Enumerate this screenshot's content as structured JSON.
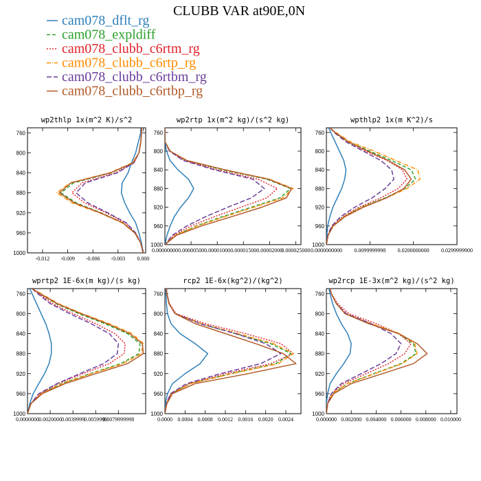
{
  "figure_title": "CLUBB VAR at90E,0N",
  "series_styles": [
    {
      "name": "cam078_dflt_rg",
      "color": "#2e7fb8",
      "dash": ""
    },
    {
      "name": "cam078_expldiff",
      "color": "#2ca02c",
      "dash": "5,3"
    },
    {
      "name": "cam078_clubb_c6rtm_rg",
      "color": "#e2232a",
      "dash": "2,2"
    },
    {
      "name": "cam078_clubb_c6rtp_rg",
      "color": "#ff8c00",
      "dash": "6,2,1,2"
    },
    {
      "name": "cam078_clubb_c6rtbm_rg",
      "color": "#6a3d9a",
      "dash": "7,3"
    },
    {
      "name": "cam078_clubb_c6rtbp_rg",
      "color": "#b15a28",
      "dash": ""
    }
  ],
  "chart_data": [
    {
      "type": "line",
      "title": "wp2thlp   1x(m^2 K)/s^2",
      "ylim": [
        1000,
        750
      ],
      "yticks": [
        760,
        800,
        840,
        880,
        920,
        960,
        1000
      ],
      "xlim": [
        -0.0138,
        0.0003
      ],
      "xticks": [
        -0.012,
        -0.009,
        -0.006,
        -0.003,
        0.0
      ],
      "xtick_labels": [
        "-0.012",
        "-0.009",
        "-0.006",
        "-0.003",
        "0.000"
      ],
      "y": [
        750,
        760,
        780,
        800,
        820,
        840,
        860,
        880,
        900,
        920,
        940,
        960,
        980,
        1000
      ],
      "series": [
        {
          "name": "cam078_dflt_rg",
          "values": [
            -0.0003,
            -0.0003,
            -0.0006,
            -0.0009,
            -0.0014,
            -0.0018,
            -0.0025,
            -0.0026,
            -0.0022,
            -0.0016,
            -0.0009,
            -0.0005,
            -0.0002,
            0.0
          ]
        },
        {
          "name": "cam078_expldiff",
          "values": [
            -0.0002,
            -0.0002,
            -0.0003,
            -0.0005,
            -0.0012,
            -0.0038,
            -0.0083,
            -0.0098,
            -0.008,
            -0.005,
            -0.0024,
            -0.001,
            -0.0003,
            0.0
          ]
        },
        {
          "name": "cam078_clubb_c6rtm_rg",
          "values": [
            -0.0002,
            -0.0002,
            -0.0003,
            -0.0005,
            -0.0011,
            -0.0033,
            -0.0073,
            -0.0085,
            -0.007,
            -0.0044,
            -0.0021,
            -0.0009,
            -0.0003,
            0.0
          ]
        },
        {
          "name": "cam078_clubb_c6rtp_rg",
          "values": [
            -0.0002,
            -0.0002,
            -0.0003,
            -0.0005,
            -0.0013,
            -0.004,
            -0.0087,
            -0.0103,
            -0.0085,
            -0.0052,
            -0.0025,
            -0.001,
            -0.0003,
            0.0
          ]
        },
        {
          "name": "cam078_clubb_c6rtbm_rg",
          "values": [
            -0.0002,
            -0.0002,
            -0.0003,
            -0.0005,
            -0.0011,
            -0.0031,
            -0.0069,
            -0.008,
            -0.0066,
            -0.0042,
            -0.002,
            -0.0009,
            -0.0003,
            0.0
          ]
        },
        {
          "name": "cam078_clubb_c6rtbp_rg",
          "values": [
            -0.0002,
            -0.0002,
            -0.0003,
            -0.0005,
            -0.0012,
            -0.0039,
            -0.0086,
            -0.01,
            -0.0082,
            -0.0051,
            -0.0024,
            -0.001,
            -0.0003,
            0.0
          ]
        }
      ]
    },
    {
      "type": "line",
      "title": "wp2rtp   1x(m^2 kg)/(s^2 kg)",
      "ylim": [
        1000,
        750
      ],
      "yticks": [
        760,
        800,
        840,
        880,
        920,
        960,
        1000
      ],
      "xlim": [
        0.0,
        2.6e-05
      ],
      "xticks": [
        0.0,
        5e-06,
        1e-05,
        1.5e-05,
        2e-05,
        2.5e-05
      ],
      "xtick_labels": [
        "0.00000000",
        "0.00000500",
        "0.00001000",
        "0.00001500",
        "0.00002000",
        "0.000025000"
      ],
      "y": [
        750,
        760,
        780,
        800,
        820,
        840,
        860,
        880,
        900,
        920,
        940,
        960,
        980,
        1000
      ],
      "series": [
        {
          "name": "cam078_dflt_rg",
          "values": [
            0.0,
            0.0,
            0.0,
            3e-07,
            1e-06,
            2.5e-06,
            4.5e-06,
            5.5e-06,
            4.5e-06,
            3e-06,
            1.8e-06,
            1e-06,
            4e-07,
            0.0
          ]
        },
        {
          "name": "cam078_expldiff",
          "values": [
            0.0,
            0.0,
            0.0,
            1e-06,
            4e-06,
            1.1e-05,
            1.95e-05,
            2.4e-05,
            2.2e-05,
            1.65e-05,
            1.1e-05,
            6e-06,
            2e-06,
            0.0
          ]
        },
        {
          "name": "cam078_clubb_c6rtm_rg",
          "values": [
            0.0,
            0.0,
            0.0,
            9e-07,
            3.7e-06,
            1e-05,
            1.78e-05,
            2.15e-05,
            1.95e-05,
            1.45e-05,
            9.5e-06,
            5e-06,
            1.7e-06,
            0.0
          ]
        },
        {
          "name": "cam078_clubb_c6rtp_rg",
          "values": [
            0.0,
            0.0,
            0.0,
            1e-06,
            4.2e-06,
            1.15e-05,
            2e-05,
            2.45e-05,
            2.25e-05,
            1.7e-05,
            1.15e-05,
            6.2e-06,
            2e-06,
            0.0
          ]
        },
        {
          "name": "cam078_clubb_c6rtbm_rg",
          "values": [
            0.0,
            0.0,
            0.0,
            9e-07,
            3.5e-06,
            9.5e-06,
            1.68e-05,
            1.9e-05,
            1.65e-05,
            1.2e-05,
            7.8e-06,
            4.2e-06,
            1.4e-06,
            0.0
          ]
        },
        {
          "name": "cam078_clubb_c6rtbp_rg",
          "values": [
            0.0,
            0.0,
            0.0,
            1e-06,
            4.2e-06,
            1.15e-05,
            1.98e-05,
            2.42e-05,
            2.32e-05,
            1.85e-05,
            1.28e-05,
            7e-06,
            2.2e-06,
            0.0
          ]
        }
      ]
    },
    {
      "type": "line",
      "title": "wpthlp2   1x(m K^2)/s",
      "ylim": [
        1000,
        750
      ],
      "yticks": [
        760,
        800,
        840,
        880,
        920,
        960,
        1000
      ],
      "xlim": [
        0.0,
        0.03
      ],
      "xticks": [
        0.0,
        0.01,
        0.02,
        0.03
      ],
      "xtick_labels": [
        "0.0000000000",
        "0.0099999998",
        "0.0200000000",
        "0.0299999900"
      ],
      "y": [
        750,
        760,
        780,
        800,
        820,
        840,
        860,
        880,
        900,
        920,
        940,
        960,
        980,
        1000
      ],
      "series": [
        {
          "name": "cam078_dflt_rg",
          "values": [
            0.0005,
            0.001,
            0.002,
            0.003,
            0.004,
            0.0045,
            0.0042,
            0.0035,
            0.0025,
            0.0015,
            0.0008,
            0.0003,
            0.0001,
            0.0
          ]
        },
        {
          "name": "cam078_expldiff",
          "values": [
            0.0008,
            0.002,
            0.005,
            0.01,
            0.015,
            0.0195,
            0.0205,
            0.018,
            0.0135,
            0.008,
            0.004,
            0.0015,
            0.0004,
            0.0
          ]
        },
        {
          "name": "cam078_clubb_c6rtm_rg",
          "values": [
            0.0008,
            0.002,
            0.005,
            0.009,
            0.014,
            0.0175,
            0.0185,
            0.0165,
            0.0125,
            0.0075,
            0.0038,
            0.0014,
            0.0004,
            0.0
          ]
        },
        {
          "name": "cam078_clubb_c6rtp_rg",
          "values": [
            0.0008,
            0.0022,
            0.0055,
            0.011,
            0.016,
            0.021,
            0.0215,
            0.0185,
            0.0138,
            0.0082,
            0.0041,
            0.0015,
            0.0004,
            0.0
          ]
        },
        {
          "name": "cam078_clubb_c6rtbm_rg",
          "values": [
            0.0008,
            0.0018,
            0.0045,
            0.0085,
            0.0125,
            0.015,
            0.0155,
            0.0135,
            0.0105,
            0.0065,
            0.0033,
            0.0012,
            0.0003,
            0.0
          ]
        },
        {
          "name": "cam078_clubb_c6rtbp_rg",
          "values": [
            0.0008,
            0.002,
            0.005,
            0.0095,
            0.0142,
            0.018,
            0.0195,
            0.0178,
            0.0138,
            0.0085,
            0.0043,
            0.0016,
            0.0004,
            0.0
          ]
        }
      ]
    },
    {
      "type": "line",
      "title": "wprtp2   1E-6x(m kg)/(s kg)",
      "ylim": [
        1000,
        750
      ],
      "yticks": [
        760,
        800,
        840,
        880,
        920,
        960,
        1000
      ],
      "xlim": [
        0.0,
        0.0104
      ],
      "xticks": [
        0.0,
        0.002,
        0.004,
        0.006,
        0.008
      ],
      "xtick_labels": [
        "0.0000000",
        "0.0020000",
        "0.0039999",
        "0.0059999",
        "0.0079999998"
      ],
      "y": [
        750,
        760,
        780,
        800,
        820,
        840,
        860,
        880,
        900,
        920,
        940,
        960,
        980,
        1000
      ],
      "series": [
        {
          "name": "cam078_dflt_rg",
          "values": [
            0.0002,
            0.0004,
            0.0008,
            0.0012,
            0.0016,
            0.0019,
            0.0021,
            0.0021,
            0.0019,
            0.0015,
            0.001,
            0.0005,
            0.0002,
            0.0
          ]
        },
        {
          "name": "cam078_expldiff",
          "values": [
            0.0004,
            0.0011,
            0.0025,
            0.0045,
            0.0068,
            0.0088,
            0.0099,
            0.0098,
            0.0082,
            0.0055,
            0.003,
            0.0012,
            0.0003,
            0.0
          ]
        },
        {
          "name": "cam078_clubb_c6rtm_rg",
          "values": [
            0.0004,
            0.001,
            0.0022,
            0.004,
            0.006,
            0.0077,
            0.0086,
            0.0085,
            0.0072,
            0.0049,
            0.0027,
            0.0011,
            0.0003,
            0.0
          ]
        },
        {
          "name": "cam078_clubb_c6rtp_rg",
          "values": [
            0.0004,
            0.0012,
            0.0027,
            0.0048,
            0.0072,
            0.0092,
            0.0102,
            0.01,
            0.0084,
            0.0056,
            0.0031,
            0.0012,
            0.0003,
            0.0
          ]
        },
        {
          "name": "cam078_clubb_c6rtbm_rg",
          "values": [
            0.0004,
            0.0009,
            0.002,
            0.0037,
            0.0056,
            0.0072,
            0.008,
            0.0079,
            0.0067,
            0.0046,
            0.0026,
            0.001,
            0.0003,
            0.0
          ]
        },
        {
          "name": "cam078_clubb_c6rtbp_rg",
          "values": [
            0.0004,
            0.0011,
            0.0026,
            0.0047,
            0.007,
            0.009,
            0.0101,
            0.0102,
            0.0088,
            0.006,
            0.0033,
            0.0013,
            0.0003,
            0.0
          ]
        }
      ]
    },
    {
      "type": "line",
      "title": "rcp2   1E-6x(kg^2)/(kg^2)",
      "ylim": [
        1000,
        750
      ],
      "yticks": [
        760,
        800,
        840,
        880,
        920,
        960,
        1000
      ],
      "xlim": [
        0.0,
        0.0027
      ],
      "xticks": [
        0.0,
        0.0004,
        0.0008,
        0.0012,
        0.0016,
        0.002,
        0.0024
      ],
      "xtick_labels": [
        "0.0000",
        "0.0004",
        "0.0008",
        "0.0012",
        "0.0016",
        "0.0020",
        "0.0024"
      ],
      "y": [
        750,
        760,
        780,
        800,
        820,
        840,
        860,
        880,
        900,
        920,
        940,
        960,
        980,
        1000
      ],
      "series": [
        {
          "name": "cam078_dflt_rg",
          "values": [
            2e-05,
            2e-05,
            3e-05,
            5e-05,
            0.00012,
            0.0003,
            0.0006,
            0.00085,
            0.0007,
            0.0004,
            0.00015,
            5e-05,
            1e-05,
            0.0
          ]
        },
        {
          "name": "cam078_expldiff",
          "values": [
            3e-05,
            4e-05,
            8e-05,
            0.0002,
            0.0007,
            0.0014,
            0.0021,
            0.0025,
            0.0022,
            0.0013,
            0.0005,
            0.00012,
            3e-05,
            0.0
          ]
        },
        {
          "name": "cam078_clubb_c6rtm_rg",
          "values": [
            3e-05,
            4e-05,
            9e-05,
            0.00022,
            0.0008,
            0.0016,
            0.0023,
            0.00255,
            0.0021,
            0.0012,
            0.00048,
            0.00012,
            3e-05,
            0.0
          ]
        },
        {
          "name": "cam078_clubb_c6rtp_rg",
          "values": [
            3e-05,
            4e-05,
            8e-05,
            0.0002,
            0.00072,
            0.00145,
            0.00215,
            0.00255,
            0.00225,
            0.00133,
            0.00051,
            0.00013,
            3e-05,
            0.0
          ]
        },
        {
          "name": "cam078_clubb_c6rtbm_rg",
          "values": [
            3e-05,
            4e-05,
            8e-05,
            0.0002,
            0.0007,
            0.0014,
            0.002,
            0.0023,
            0.0019,
            0.0011,
            0.00043,
            0.00011,
            3e-05,
            0.0
          ]
        },
        {
          "name": "cam078_clubb_c6rtbp_rg",
          "values": [
            3e-05,
            4e-05,
            8e-05,
            0.0002,
            0.0006,
            0.0012,
            0.0018,
            0.00235,
            0.0026,
            0.00165,
            0.0006,
            0.00015,
            4e-05,
            0.0
          ]
        }
      ]
    },
    {
      "type": "line",
      "title": "wp2rcp   1E-3x(m^2 kg)/(s^2 kg)",
      "ylim": [
        1000,
        750
      ],
      "yticks": [
        760,
        800,
        840,
        880,
        920,
        960,
        1000
      ],
      "xlim": [
        0.0,
        0.0105
      ],
      "xticks": [
        0.0,
        0.002,
        0.004,
        0.006,
        0.008,
        0.01
      ],
      "xtick_labels": [
        "0.000000",
        "0.002000",
        "0.004000",
        "0.006000",
        "0.008000",
        "0.010000"
      ],
      "y": [
        750,
        760,
        780,
        800,
        820,
        840,
        860,
        880,
        900,
        920,
        940,
        960,
        980,
        1000
      ],
      "series": [
        {
          "name": "cam078_dflt_rg",
          "values": [
            0.0002,
            0.0003,
            0.0005,
            0.0008,
            0.0012,
            0.0017,
            0.002,
            0.0019,
            0.0014,
            0.0008,
            0.0003,
            0.0001,
            0.0,
            0.0
          ]
        },
        {
          "name": "cam078_expldiff",
          "values": [
            0.0003,
            0.0004,
            0.0008,
            0.0015,
            0.0035,
            0.0058,
            0.007,
            0.0072,
            0.006,
            0.0038,
            0.0017,
            0.0005,
            0.0001,
            0.0
          ]
        },
        {
          "name": "cam078_clubb_c6rtm_rg",
          "values": [
            0.0003,
            0.0004,
            0.0009,
            0.0018,
            0.004,
            0.0058,
            0.0068,
            0.0063,
            0.005,
            0.0032,
            0.0014,
            0.0004,
            0.0001,
            0.0
          ]
        },
        {
          "name": "cam078_clubb_c6rtp_rg",
          "values": [
            0.0003,
            0.0004,
            0.0008,
            0.0015,
            0.0036,
            0.0059,
            0.0071,
            0.0073,
            0.0061,
            0.0039,
            0.0017,
            0.0005,
            0.0001,
            0.0
          ]
        },
        {
          "name": "cam078_clubb_c6rtbm_rg",
          "values": [
            0.0003,
            0.0004,
            0.0008,
            0.0016,
            0.0036,
            0.0052,
            0.006,
            0.0056,
            0.0044,
            0.0028,
            0.0012,
            0.0004,
            0.0001,
            0.0
          ]
        },
        {
          "name": "cam078_clubb_c6rtbp_rg",
          "values": [
            0.0003,
            0.0004,
            0.0008,
            0.0015,
            0.0034,
            0.0058,
            0.0073,
            0.0081,
            0.007,
            0.0045,
            0.002,
            0.0006,
            0.0001,
            0.0
          ]
        }
      ]
    }
  ]
}
